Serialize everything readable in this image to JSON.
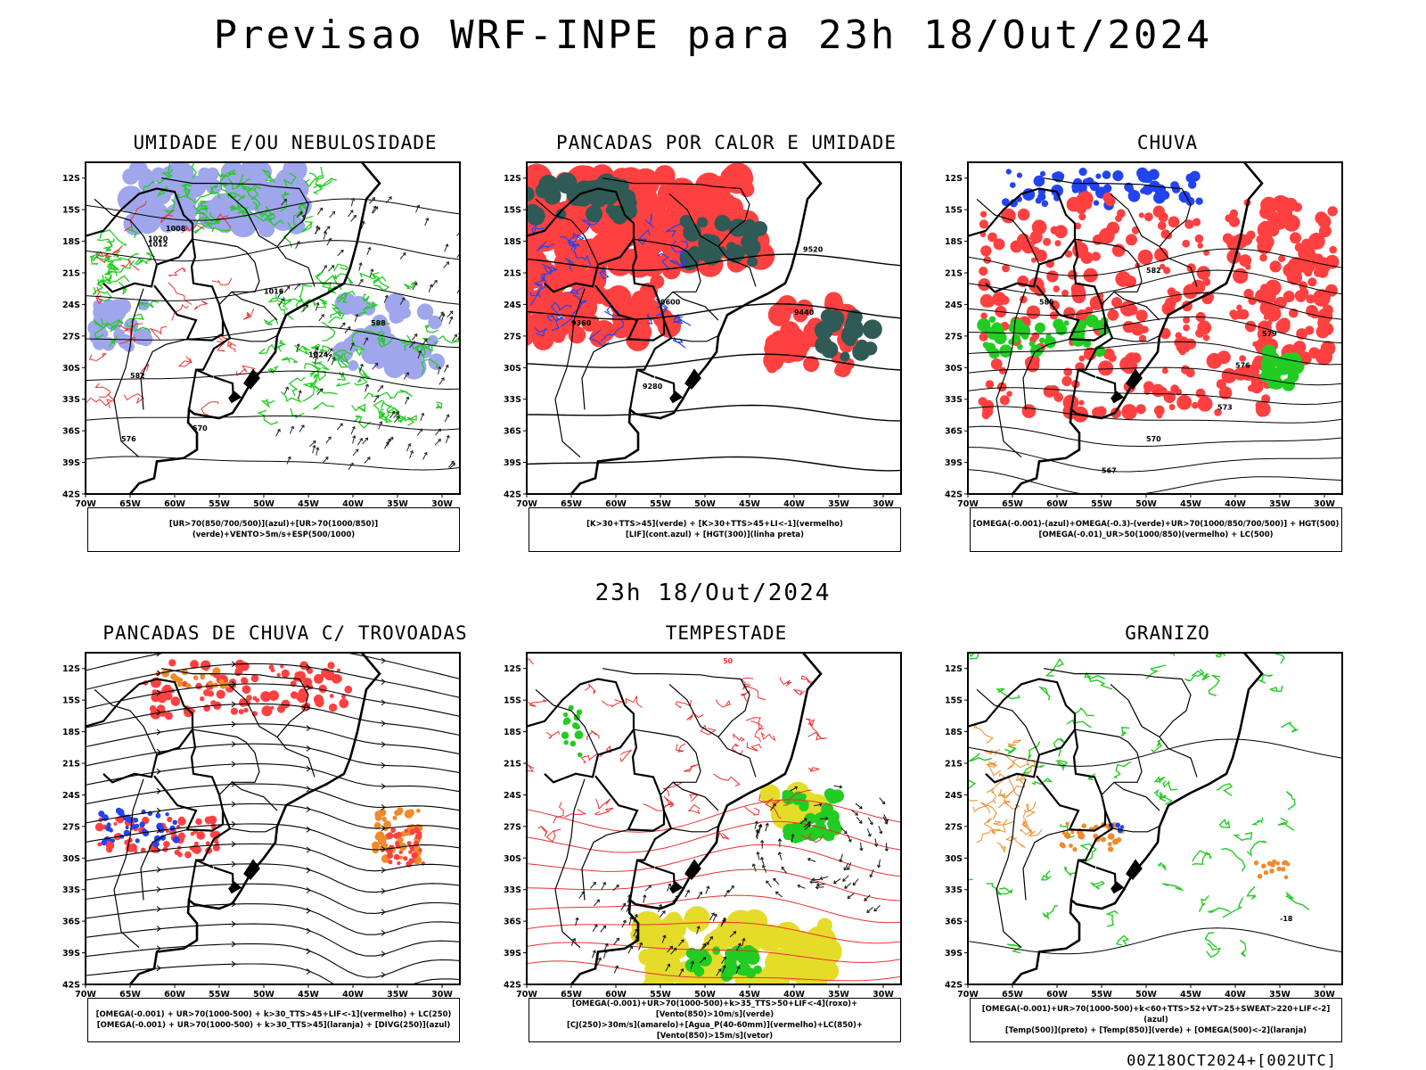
{
  "title": "Previsao WRF-INPE  para 23h 18/Out/2024",
  "subtitle": "23h 18/Out/2024",
  "footer": "00Z18OCT2024+[002UTC]",
  "axes": {
    "lon_ticks": [
      "70W",
      "65W",
      "60W",
      "55W",
      "50W",
      "45W",
      "40W",
      "35W",
      "30W"
    ],
    "lat_ticks": [
      "12S",
      "15S",
      "18S",
      "21S",
      "24S",
      "27S",
      "30S",
      "33S",
      "36S",
      "39S",
      "42S"
    ]
  },
  "colors": {
    "blue_light": "#9fa6ec",
    "green": "#22cc22",
    "red": "#ff4040",
    "dark_teal": "#2f5a55",
    "blue": "#2244ee",
    "orange": "#f08a2a",
    "yellow": "#e5dc2a"
  },
  "panels": [
    {
      "title": "UMIDADE E/OU NEBULOSIDADE",
      "legend": [
        "[UR>70(850/700/500)](azul)+[UR>70(1000/850)](verde)+VENTO>5m/s+ESP(500/1000)"
      ],
      "contour_labels": [
        "1008",
        "1012",
        "1016",
        "1020",
        "1024",
        "570",
        "576",
        "582",
        "588"
      ]
    },
    {
      "title": "PANCADAS POR CALOR E UMIDADE",
      "legend": [
        "[K>30+TTS>45](verde) + [K>30+TTS>45+LI<-1](vermelho)",
        "[LIF](cont.azul) + [HGT(300)](linha preta)"
      ],
      "contour_labels": [
        "9600",
        "9520",
        "9440",
        "9360",
        "9280"
      ]
    },
    {
      "title": "CHUVA",
      "legend": [
        "[OMEGA(-0.001)-(azul)+OMEGA(-0.3)-(verde)+UR>70(1000/850/700/500)] + HGT(500)",
        "[OMEGA(-0.01)_UR>50(1000/850)(vermelho) + LC(500)"
      ],
      "contour_labels": [
        "585",
        "582",
        "579",
        "576",
        "573",
        "570",
        "567"
      ]
    },
    {
      "title": "PANCADAS DE CHUVA C/ TROVOADAS",
      "legend": [
        "[OMEGA(-0.001) + UR>70(1000-500) + k>30_TTS>45+LIF<-1](vermelho) + LC(250)",
        "[OMEGA(-0.001) + UR>70(1000-500) + k>30_TTS>45](laranja) + [DIVG(250)](azul)"
      ],
      "contour_labels": []
    },
    {
      "title": "TEMPESTADE",
      "legend": [
        "[OMEGA(-0.001)+UR>70(1000-500)+k>35_TTS>50+LIF<-4](roxo)+[Vento(850)>10m/s](verde)",
        "[CJ(250)>30m/s](amarelo)+[Agua_P(40-60mm)](vermelho)+LC(850)+[Vento(850)>15m/s](vetor)"
      ],
      "contour_labels": [
        "50"
      ]
    },
    {
      "title": "GRANIZO",
      "legend": [
        "[OMEGA(-0.001)+UR>70(1000-500)+k<60+TTS>52+VT>25+SWEAT>220+LIF<-2](azul)",
        "[Temp(500)](preto) + [Temp(850)](verde) + [OMEGA(500)<-2](laranja)"
      ],
      "contour_labels": [
        "-18"
      ]
    }
  ]
}
